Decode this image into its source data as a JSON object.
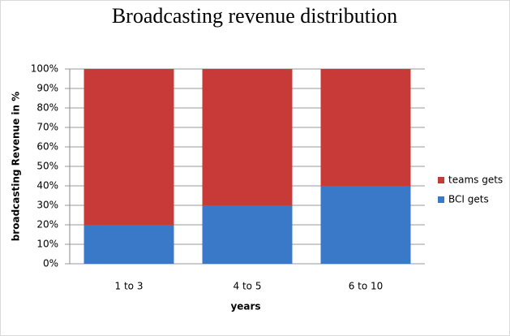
{
  "chart_data": {
    "type": "stacked_bar",
    "title": "Broadcasting revenue distribution",
    "x_label": "years",
    "y_label": "broadcasting Revenue  in %",
    "categories": [
      "1 to 3",
      "4 to 5",
      "6 to 10"
    ],
    "series": [
      {
        "name": "BCI gets",
        "color": "#3a78c8",
        "values": [
          20,
          30,
          40
        ]
      },
      {
        "name": "teams gets",
        "color": "#c83a38",
        "values": [
          80,
          70,
          60
        ]
      }
    ],
    "ylim": [
      0,
      100
    ],
    "yticks": [
      {
        "value": 0,
        "label": "0%"
      },
      {
        "value": 10,
        "label": "10%"
      },
      {
        "value": 20,
        "label": "20%"
      },
      {
        "value": 30,
        "label": "30%"
      },
      {
        "value": 40,
        "label": "40%"
      },
      {
        "value": 50,
        "label": "50%"
      },
      {
        "value": 60,
        "label": "60%"
      },
      {
        "value": 70,
        "label": "70%"
      },
      {
        "value": 80,
        "label": "80%"
      },
      {
        "value": 90,
        "label": "90%"
      },
      {
        "value": 100,
        "label": "100%"
      }
    ],
    "grid": true,
    "legend": "right"
  }
}
